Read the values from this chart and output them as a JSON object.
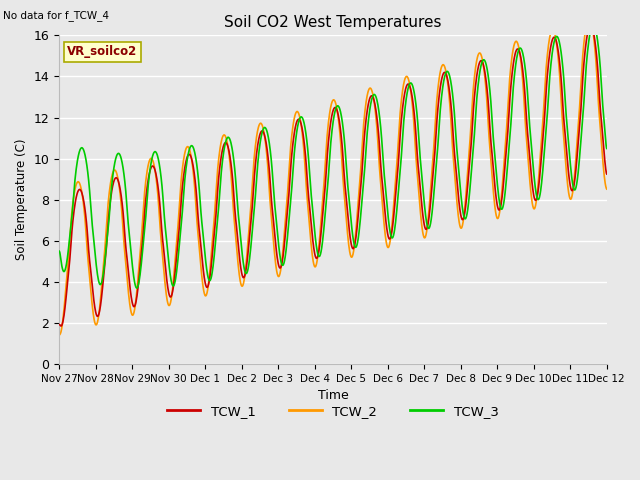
{
  "title": "Soil CO2 West Temperatures",
  "xlabel": "Time",
  "ylabel": "Soil Temperature (C)",
  "note": "No data for f_TCW_4",
  "legend_box_label": "VR_soilco2",
  "ylim": [
    0,
    16
  ],
  "yticks": [
    0,
    2,
    4,
    6,
    8,
    10,
    12,
    14,
    16
  ],
  "bg_color": "#e8e8e8",
  "fig_bg_color": "#e8e8e8",
  "grid_color": "#ffffff",
  "line_colors": {
    "TCW_1": "#cc0000",
    "TCW_2": "#ff9900",
    "TCW_3": "#00cc00"
  },
  "line_width": 1.2,
  "xtick_labels": [
    "Nov 27",
    "Nov 28",
    "Nov 29",
    "Nov 30",
    "Dec 1",
    "Dec 2",
    "Dec 3",
    "Dec 4",
    "Dec 5",
    "Dec 6",
    "Dec 7",
    "Dec 8",
    "Dec 9",
    "Dec 10",
    "Dec 11",
    "Dec 12"
  ],
  "num_days": 15
}
